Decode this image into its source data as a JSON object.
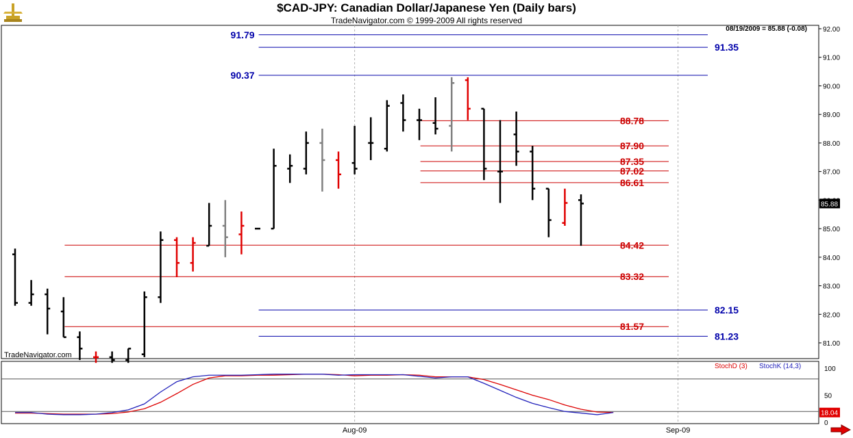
{
  "header": {
    "title": "$CAD-JPY:  Canadian Dollar/Japanese Yen  (Daily bars)",
    "subtitle": "TradeNavigator.com © 1999-2009 All rights reserved",
    "last_readout": "08/19/2009 = 85.88 (-0.08)"
  },
  "watermark": "TradeNavigator.com",
  "colors": {
    "bull_bar": "#000000",
    "bear_bar": "#e00000",
    "neutral_bar": "#808080",
    "fib_line": "#cc0000",
    "projection_line": "#0000aa",
    "stoch_d": "#dd0000",
    "stoch_k": "#2222bb",
    "grid": "#b0b0b0",
    "axis_label": "#000000"
  },
  "chart_data": [
    {
      "type": "ohlc",
      "title": "$CAD-JPY:  Canadian Dollar/Japanese Yen  (Daily bars)",
      "ylim": [
        80.5,
        92.2
      ],
      "y_ticks": [
        "81.00",
        "82.00",
        "83.00",
        "84.00",
        "85.00",
        "86.00",
        "87.00",
        "88.00",
        "89.00",
        "90.00",
        "91.00",
        "92.00"
      ],
      "x_labels": [
        {
          "bar": 21,
          "label": "Aug-09"
        },
        {
          "bar": 41,
          "label": "Sep-09"
        }
      ],
      "current_price_label": "85.88",
      "bars": [
        {
          "o": 84.1,
          "h": 84.3,
          "l": 82.3,
          "c": 82.4,
          "color": "bull"
        },
        {
          "o": 82.4,
          "h": 83.2,
          "l": 82.3,
          "c": 82.7,
          "color": "bull"
        },
        {
          "o": 82.7,
          "h": 82.9,
          "l": 81.3,
          "c": 82.2,
          "color": "bull"
        },
        {
          "o": 82.1,
          "h": 82.6,
          "l": 81.2,
          "c": 81.2,
          "color": "bull"
        },
        {
          "o": 81.2,
          "h": 81.4,
          "l": 80.4,
          "c": 80.8,
          "color": "bull"
        },
        {
          "o": 80.5,
          "h": 80.7,
          "l": 80.3,
          "c": 80.5,
          "color": "bear"
        },
        {
          "o": 80.5,
          "h": 80.7,
          "l": 80.3,
          "c": 80.4,
          "color": "bull"
        },
        {
          "o": 80.4,
          "h": 80.8,
          "l": 80.3,
          "c": 80.8,
          "color": "bull"
        },
        {
          "o": 80.6,
          "h": 82.8,
          "l": 80.5,
          "c": 82.6,
          "color": "bull"
        },
        {
          "o": 82.6,
          "h": 84.9,
          "l": 82.4,
          "c": 84.6,
          "color": "bull"
        },
        {
          "o": 84.6,
          "h": 84.7,
          "l": 83.3,
          "c": 83.8,
          "color": "bear"
        },
        {
          "o": 83.8,
          "h": 84.7,
          "l": 83.5,
          "c": 84.5,
          "color": "bear"
        },
        {
          "o": 84.4,
          "h": 85.9,
          "l": 84.4,
          "c": 85.1,
          "color": "bull"
        },
        {
          "o": 85.1,
          "h": 86.0,
          "l": 84.0,
          "c": 84.7,
          "color": "neutral"
        },
        {
          "o": 84.8,
          "h": 85.6,
          "l": 84.1,
          "c": 85.1,
          "color": "bear"
        },
        {
          "o": 85.0,
          "h": 85.0,
          "l": 85.0,
          "c": 85.0,
          "color": "bull"
        },
        {
          "o": 85.0,
          "h": 87.8,
          "l": 85.0,
          "c": 87.2,
          "color": "bull"
        },
        {
          "o": 87.1,
          "h": 87.6,
          "l": 86.6,
          "c": 87.2,
          "color": "bull"
        },
        {
          "o": 87.1,
          "h": 88.4,
          "l": 86.9,
          "c": 88.0,
          "color": "bull"
        },
        {
          "o": 88.0,
          "h": 88.5,
          "l": 86.3,
          "c": 87.4,
          "color": "neutral"
        },
        {
          "o": 87.4,
          "h": 87.7,
          "l": 86.4,
          "c": 86.9,
          "color": "bear"
        },
        {
          "o": 87.3,
          "h": 88.6,
          "l": 86.9,
          "c": 87.1,
          "color": "bull"
        },
        {
          "o": 88.0,
          "h": 88.9,
          "l": 87.4,
          "c": 88.0,
          "color": "bull"
        },
        {
          "o": 87.8,
          "h": 89.5,
          "l": 87.7,
          "c": 89.3,
          "color": "bull"
        },
        {
          "o": 89.4,
          "h": 89.7,
          "l": 88.4,
          "c": 88.8,
          "color": "bull"
        },
        {
          "o": 88.8,
          "h": 89.2,
          "l": 88.1,
          "c": 88.8,
          "color": "bull"
        },
        {
          "o": 88.7,
          "h": 89.6,
          "l": 88.3,
          "c": 88.5,
          "color": "bull"
        },
        {
          "o": 88.6,
          "h": 90.3,
          "l": 87.7,
          "c": 90.1,
          "color": "neutral"
        },
        {
          "o": 90.2,
          "h": 90.3,
          "l": 88.8,
          "c": 89.2,
          "color": "bear"
        },
        {
          "o": 89.2,
          "h": 89.2,
          "l": 86.7,
          "c": 87.1,
          "color": "bull"
        },
        {
          "o": 87.0,
          "h": 88.8,
          "l": 85.9,
          "c": 87.0,
          "color": "bull"
        },
        {
          "o": 88.3,
          "h": 89.1,
          "l": 87.2,
          "c": 87.7,
          "color": "bull"
        },
        {
          "o": 87.7,
          "h": 87.9,
          "l": 86.0,
          "c": 86.4,
          "color": "bull"
        },
        {
          "o": 86.4,
          "h": 86.4,
          "l": 84.7,
          "c": 85.3,
          "color": "bull"
        },
        {
          "o": 85.2,
          "h": 86.4,
          "l": 85.1,
          "c": 85.9,
          "color": "bear"
        },
        {
          "o": 86.0,
          "h": 86.2,
          "l": 84.4,
          "c": 85.88,
          "color": "bull"
        }
      ],
      "levels": [
        {
          "value": 91.79,
          "label": "91.79",
          "kind": "projection",
          "from_bar": 16,
          "to_bar": 53,
          "label_pos": "left"
        },
        {
          "value": 91.35,
          "label": "91.35",
          "kind": "projection",
          "from_bar": 16,
          "to_bar": 53,
          "label_pos": "right"
        },
        {
          "value": 90.37,
          "label": "90.37",
          "kind": "projection",
          "from_bar": 16,
          "to_bar": 53,
          "label_pos": "left"
        },
        {
          "value": 88.78,
          "label": "88.78",
          "kind": "fib",
          "from_bar": 26,
          "to_bar": 40,
          "label_pos": "right"
        },
        {
          "value": 87.9,
          "label": "87.90",
          "kind": "fib",
          "from_bar": 26,
          "to_bar": 40,
          "label_pos": "right"
        },
        {
          "value": 87.35,
          "label": "87.35",
          "kind": "fib",
          "from_bar": 26,
          "to_bar": 40,
          "label_pos": "right"
        },
        {
          "value": 87.02,
          "label": "87.02",
          "kind": "fib",
          "from_bar": 26,
          "to_bar": 40,
          "label_pos": "right"
        },
        {
          "value": 86.61,
          "label": "86.61",
          "kind": "fib",
          "from_bar": 26,
          "to_bar": 40,
          "label_pos": "right"
        },
        {
          "value": 84.42,
          "label": "84.42",
          "kind": "fib",
          "from_bar": 4,
          "to_bar": 40,
          "label_pos": "right"
        },
        {
          "value": 83.32,
          "label": "83.32",
          "kind": "fib",
          "from_bar": 4,
          "to_bar": 40,
          "label_pos": "right"
        },
        {
          "value": 82.15,
          "label": "82.15",
          "kind": "projection",
          "from_bar": 16,
          "to_bar": 53,
          "label_pos": "right"
        },
        {
          "value": 81.57,
          "label": "81.57",
          "kind": "fib",
          "from_bar": 4,
          "to_bar": 40,
          "label_pos": "right"
        },
        {
          "value": 81.23,
          "label": "81.23",
          "kind": "projection",
          "from_bar": 16,
          "to_bar": 53,
          "label_pos": "right"
        }
      ]
    },
    {
      "type": "line",
      "legend": [
        "StochD (3)",
        "StochK (14,3)"
      ],
      "ylim": [
        0,
        100
      ],
      "y_ticks": [
        "0",
        "50",
        "100"
      ],
      "reference_lines": [
        80,
        20
      ],
      "current_value_label": "18.04",
      "series": [
        {
          "name": "StochD (3)",
          "values": [
            17,
            17,
            16,
            15,
            15,
            15,
            16,
            19,
            25,
            37,
            53,
            70,
            82,
            86,
            86,
            87,
            87,
            88,
            89,
            89,
            88,
            86,
            87,
            87,
            88,
            87,
            84,
            84,
            84,
            79,
            70,
            60,
            50,
            42,
            32,
            24,
            19,
            18
          ]
        },
        {
          "name": "StochK (14,3)",
          "values": [
            18,
            18,
            15,
            14,
            14,
            15,
            18,
            23,
            34,
            56,
            75,
            84,
            87,
            87,
            87,
            88,
            89,
            89,
            89,
            89,
            87,
            88,
            88,
            88,
            88,
            85,
            82,
            84,
            84,
            72,
            59,
            46,
            35,
            27,
            20,
            17,
            14,
            18
          ]
        }
      ]
    }
  ]
}
